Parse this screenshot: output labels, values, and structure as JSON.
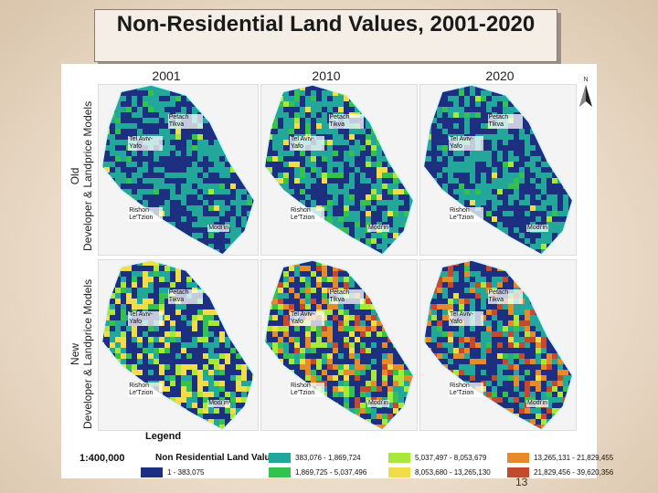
{
  "slide": {
    "title": "Non-Residential Land Values, 2001-2020",
    "page_number": "13"
  },
  "figure": {
    "columns": [
      "2001",
      "2010",
      "2020"
    ],
    "rows": [
      {
        "line1": "Old",
        "line2": "Developer & Landprice Models"
      },
      {
        "line1": "New",
        "line2": "Developer & Landprice Models"
      }
    ],
    "cities": {
      "tel_aviv": "Tel Aviv-Yafo",
      "petach_tikva": "Petach Tikva",
      "rishon": "Rishon Le'Tzion",
      "modiin": "Modi'in"
    },
    "north_letter": "N",
    "legend_title": "Legend",
    "scale": "1:400,000",
    "legend_heading": "Non Residential Land Value",
    "legend": [
      {
        "label": "1 - 383,075",
        "color": "#1c2f80"
      },
      {
        "label": "383,076 - 1,869,724",
        "color": "#23a79b"
      },
      {
        "label": "1,869,725 - 5,037,496",
        "color": "#34c24e"
      },
      {
        "label": "5,037,497 - 8,053,679",
        "color": "#a7e83a"
      },
      {
        "label": "8,053,680 - 13,265,130",
        "color": "#f1dd4a"
      },
      {
        "label": "13,265,131 - 21,829,455",
        "color": "#e58b2c"
      },
      {
        "label": "21,829,456 - 39,620,356",
        "color": "#c24a2e"
      }
    ]
  }
}
